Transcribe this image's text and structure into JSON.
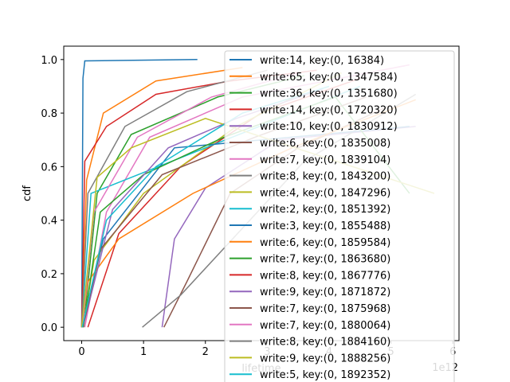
{
  "chart_data": {
    "type": "line",
    "title": "",
    "xlabel": "lifetime",
    "ylabel": "cdf",
    "x_offset_label": "1e12",
    "xlim": [
      -0.29,
      6.1
    ],
    "ylim": [
      -0.05,
      1.05
    ],
    "x_ticks": [
      {
        "value": 0,
        "label": "0"
      },
      {
        "value": 1,
        "label": "1"
      },
      {
        "value": 2,
        "label": "2"
      },
      {
        "value": 3,
        "label": "3"
      },
      {
        "value": 4,
        "label": "4"
      },
      {
        "value": 5,
        "label": "5"
      },
      {
        "value": 6,
        "label": "6"
      }
    ],
    "y_ticks": [
      {
        "value": 0.0,
        "label": "0.0"
      },
      {
        "value": 0.2,
        "label": "0.2"
      },
      {
        "value": 0.4,
        "label": "0.4"
      },
      {
        "value": 0.6,
        "label": "0.6"
      },
      {
        "value": 0.8,
        "label": "0.8"
      },
      {
        "value": 1.0,
        "label": "1.0"
      }
    ],
    "grid": false,
    "legend_position": "upper-right",
    "palette": [
      "#1f77b4",
      "#ff7f0e",
      "#2ca02c",
      "#d62728",
      "#9467bd",
      "#8c564b",
      "#e377c2",
      "#7f7f7f",
      "#bcbd22",
      "#17becf"
    ],
    "series": [
      {
        "name": "write:14, key:(0, 16384)",
        "color": "#1f77b4",
        "x": [
          0.0,
          0.02,
          0.05,
          1.87
        ],
        "y": [
          0.0,
          0.93,
          0.995,
          1.0
        ]
      },
      {
        "name": "write:65, key:(0, 1347584)",
        "color": "#ff7f0e",
        "x": [
          0.0,
          0.08,
          0.35,
          1.2,
          2.6
        ],
        "y": [
          0.0,
          0.55,
          0.8,
          0.92,
          0.97
        ]
      },
      {
        "name": "write:36, key:(0, 1351680)",
        "color": "#2ca02c",
        "x": [
          0.03,
          0.25,
          0.8,
          2.2,
          3.6
        ],
        "y": [
          0.0,
          0.5,
          0.72,
          0.86,
          0.94
        ]
      },
      {
        "name": "write:14, key:(0, 1720320)",
        "color": "#d62728",
        "x": [
          0.1,
          0.6,
          1.6,
          2.9,
          4.5
        ],
        "y": [
          0.0,
          0.35,
          0.6,
          0.8,
          0.93
        ]
      },
      {
        "name": "write:10, key:(0, 1830912)",
        "color": "#9467bd",
        "x": [
          1.3,
          1.5,
          2.0,
          3.2,
          5.4
        ],
        "y": [
          0.0,
          0.33,
          0.52,
          0.7,
          0.75
        ]
      },
      {
        "name": "write:6, key:(0, 1835008)",
        "color": "#8c564b",
        "x": [
          1.33,
          1.7,
          2.4,
          3.5,
          5.0
        ],
        "y": [
          0.0,
          0.17,
          0.5,
          0.67,
          0.83
        ]
      },
      {
        "name": "write:7, key:(0, 1839104)",
        "color": "#e377c2",
        "x": [
          0.05,
          0.4,
          1.1,
          2.6,
          5.3
        ],
        "y": [
          0.0,
          0.43,
          0.71,
          0.86,
          0.98
        ]
      },
      {
        "name": "write:8, key:(0, 1843200)",
        "color": "#7f7f7f",
        "x": [
          0.98,
          1.6,
          2.6,
          3.6,
          5.4
        ],
        "y": [
          0.0,
          0.12,
          0.37,
          0.62,
          0.87
        ]
      },
      {
        "name": "write:4, key:(0, 1847296)",
        "color": "#bcbd22",
        "x": [
          0.02,
          0.2,
          1.0,
          2.5,
          4.2
        ],
        "y": [
          0.0,
          0.25,
          0.5,
          0.75,
          0.95
        ]
      },
      {
        "name": "write:2, key:(0, 1851392)",
        "color": "#17becf",
        "x": [
          0.0,
          0.15,
          4.5
        ],
        "y": [
          0.0,
          0.5,
          0.9
        ]
      },
      {
        "name": "write:3, key:(0, 1855488)",
        "color": "#1f77b4",
        "x": [
          0.01,
          0.35,
          1.5,
          5.3
        ],
        "y": [
          0.0,
          0.33,
          0.67,
          0.75
        ]
      },
      {
        "name": "write:6, key:(0, 1859584)",
        "color": "#ff7f0e",
        "x": [
          0.0,
          0.1,
          0.6,
          1.8,
          3.4,
          5.4
        ],
        "y": [
          0.0,
          0.17,
          0.33,
          0.5,
          0.67,
          0.85
        ]
      },
      {
        "name": "write:7, key:(0, 1863680)",
        "color": "#2ca02c",
        "x": [
          0.03,
          0.3,
          1.0,
          2.3,
          4.1,
          5.3
        ],
        "y": [
          0.0,
          0.43,
          0.57,
          0.71,
          0.86,
          0.5
        ]
      },
      {
        "name": "write:8, key:(0, 1867776)",
        "color": "#d62728",
        "x": [
          0.0,
          0.05,
          0.4,
          1.2,
          2.4,
          3.8
        ],
        "y": [
          0.0,
          0.62,
          0.75,
          0.87,
          0.92,
          0.96
        ]
      },
      {
        "name": "write:9, key:(0, 1871872)",
        "color": "#9467bd",
        "x": [
          0.02,
          0.5,
          1.4,
          2.5,
          3.9
        ],
        "y": [
          0.0,
          0.44,
          0.67,
          0.78,
          0.89
        ]
      },
      {
        "name": "write:7, key:(0, 1875968)",
        "color": "#8c564b",
        "x": [
          0.02,
          0.3,
          1.3,
          2.8,
          4.6
        ],
        "y": [
          0.0,
          0.29,
          0.57,
          0.71,
          0.86
        ]
      },
      {
        "name": "write:7, key:(0, 1880064)",
        "color": "#e377c2",
        "x": [
          0.01,
          0.2,
          0.9,
          2.1,
          3.5
        ],
        "y": [
          0.0,
          0.43,
          0.71,
          0.86,
          0.95
        ]
      },
      {
        "name": "write:8, key:(0, 1884160)",
        "color": "#7f7f7f",
        "x": [
          0.0,
          0.1,
          0.7,
          1.7,
          3.0
        ],
        "y": [
          0.0,
          0.5,
          0.75,
          0.88,
          0.96
        ]
      },
      {
        "name": "write:9, key:(0, 1888256)",
        "color": "#bcbd22",
        "x": [
          0.0,
          0.25,
          0.8,
          2.0,
          5.7
        ],
        "y": [
          0.0,
          0.56,
          0.67,
          0.78,
          0.5
        ]
      },
      {
        "name": "write:5, key:(0, 1892352)",
        "color": "#17becf",
        "x": [
          0.01,
          0.4,
          1.2,
          2.6,
          4.0
        ],
        "y": [
          0.0,
          0.4,
          0.6,
          0.8,
          0.9
        ]
      }
    ]
  }
}
